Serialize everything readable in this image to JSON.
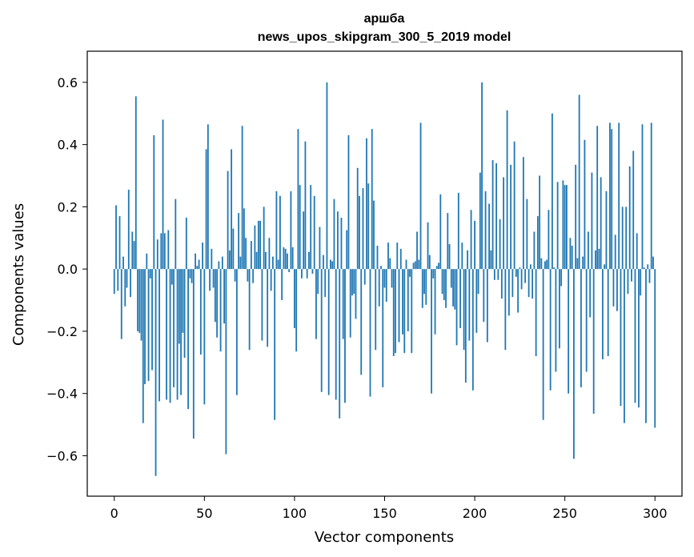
{
  "chart_data": {
    "type": "bar",
    "title_line1": "аршба",
    "title_line2": "news_upos_skipgram_300_5_2019 model",
    "xlabel": "Vector components",
    "ylabel": "Components values",
    "xlim": [
      -15,
      315
    ],
    "ylim": [
      -0.73,
      0.7
    ],
    "xticks": [
      0,
      50,
      100,
      150,
      200,
      250,
      300
    ],
    "xtick_labels": [
      "0",
      "50",
      "100",
      "150",
      "200",
      "250",
      "300"
    ],
    "yticks": [
      -0.6,
      -0.4,
      -0.2,
      0.0,
      0.2,
      0.4,
      0.6
    ],
    "ytick_labels": [
      "−0.6",
      "−0.4",
      "−0.2",
      "0.0",
      "0.2",
      "0.4",
      "0.6"
    ],
    "grid": false,
    "bar_color": "#1f77b4",
    "values": [
      -0.08,
      0.205,
      -0.07,
      0.17,
      -0.225,
      0.04,
      -0.12,
      -0.06,
      0.255,
      -0.09,
      0.12,
      0.09,
      0.555,
      -0.2,
      -0.205,
      -0.23,
      -0.495,
      -0.37,
      0.05,
      -0.36,
      -0.03,
      -0.325,
      0.43,
      -0.665,
      0.095,
      -0.425,
      0.115,
      0.48,
      0.115,
      -0.42,
      0.125,
      -0.43,
      -0.05,
      -0.38,
      0.225,
      -0.42,
      -0.24,
      -0.405,
      -0.205,
      -0.285,
      0.165,
      -0.45,
      -0.03,
      -0.045,
      -0.545,
      0.05,
      0.01,
      0.03,
      -0.275,
      0.085,
      -0.435,
      0.385,
      0.465,
      -0.07,
      0.065,
      -0.06,
      -0.17,
      -0.22,
      0.025,
      -0.265,
      0.04,
      -0.175,
      -0.595,
      0.315,
      0.06,
      0.385,
      0.13,
      -0.04,
      -0.405,
      0.18,
      0.04,
      0.46,
      0.195,
      0.1,
      -0.04,
      -0.26,
      0.09,
      -0.045,
      0.14,
      0.055,
      0.155,
      0.155,
      -0.23,
      0.2,
      0.055,
      -0.25,
      0.1,
      -0.07,
      0.04,
      -0.485,
      0.25,
      0.03,
      0.235,
      -0.1,
      0.07,
      0.065,
      0.05,
      -0.01,
      0.25,
      0.07,
      -0.19,
      -0.265,
      0.45,
      0.27,
      -0.03,
      0.185,
      0.41,
      -0.03,
      0.055,
      0.27,
      -0.015,
      0.235,
      -0.225,
      -0.08,
      0.135,
      -0.395,
      0.045,
      -0.09,
      0.6,
      -0.405,
      0.03,
      0.025,
      0.225,
      -0.42,
      0.185,
      -0.48,
      0.165,
      -0.225,
      -0.43,
      0.125,
      0.43,
      -0.22,
      -0.085,
      -0.08,
      -0.16,
      0.325,
      0.235,
      -0.34,
      0.26,
      -0.05,
      0.42,
      0.275,
      -0.41,
      0.45,
      0.22,
      -0.26,
      0.075,
      -0.12,
      0.01,
      -0.38,
      -0.06,
      -0.105,
      0.085,
      0.035,
      -0.06,
      -0.28,
      -0.27,
      0.085,
      -0.235,
      0.065,
      -0.21,
      -0.27,
      0.03,
      -0.2,
      -0.025,
      -0.27,
      0.02,
      0.025,
      0.12,
      0.03,
      0.47,
      -0.125,
      -0.08,
      -0.115,
      0.15,
      0.045,
      -0.4,
      -0.03,
      -0.21,
      0.01,
      0.02,
      0.24,
      -0.08,
      -0.1,
      -0.125,
      0.18,
      0.08,
      -0.06,
      -0.12,
      -0.13,
      -0.245,
      0.245,
      -0.19,
      0.085,
      -0.26,
      -0.365,
      0.06,
      -0.23,
      0.19,
      -0.39,
      0.155,
      -0.205,
      -0.08,
      0.31,
      0.6,
      -0.17,
      0.25,
      -0.235,
      0.21,
      0.06,
      0.35,
      -0.035,
      0.34,
      -0.035,
      0.16,
      -0.095,
      0.295,
      -0.26,
      0.51,
      -0.15,
      0.335,
      -0.09,
      0.41,
      -0.025,
      -0.14,
      0.005,
      -0.065,
      0.36,
      -0.045,
      0.225,
      -0.09,
      0.015,
      -0.095,
      0.12,
      -0.28,
      0.17,
      0.3,
      0.035,
      -0.485,
      0.025,
      0.03,
      0.19,
      -0.39,
      0.5,
      0.005,
      -0.33,
      0.28,
      -0.255,
      -0.055,
      0.285,
      0.27,
      0.27,
      -0.4,
      0.1,
      0.075,
      -0.61,
      0.335,
      0.035,
      0.56,
      -0.38,
      0.04,
      0.415,
      -0.33,
      0.12,
      -0.155,
      0.31,
      -0.465,
      0.06,
      0.46,
      0.065,
      0.295,
      -0.29,
      0.015,
      0.25,
      -0.28,
      0.47,
      0.45,
      -0.12,
      0.11,
      -0.135,
      0.47,
      -0.44,
      0.2,
      -0.495,
      0.2,
      -0.08,
      0.33,
      -0.04,
      0.38,
      -0.43,
      0.115,
      -0.445,
      -0.085,
      0.465,
      0.005,
      -0.495,
      0.015,
      -0.045,
      0.47,
      0.04,
      -0.51,
      0.0
    ]
  }
}
